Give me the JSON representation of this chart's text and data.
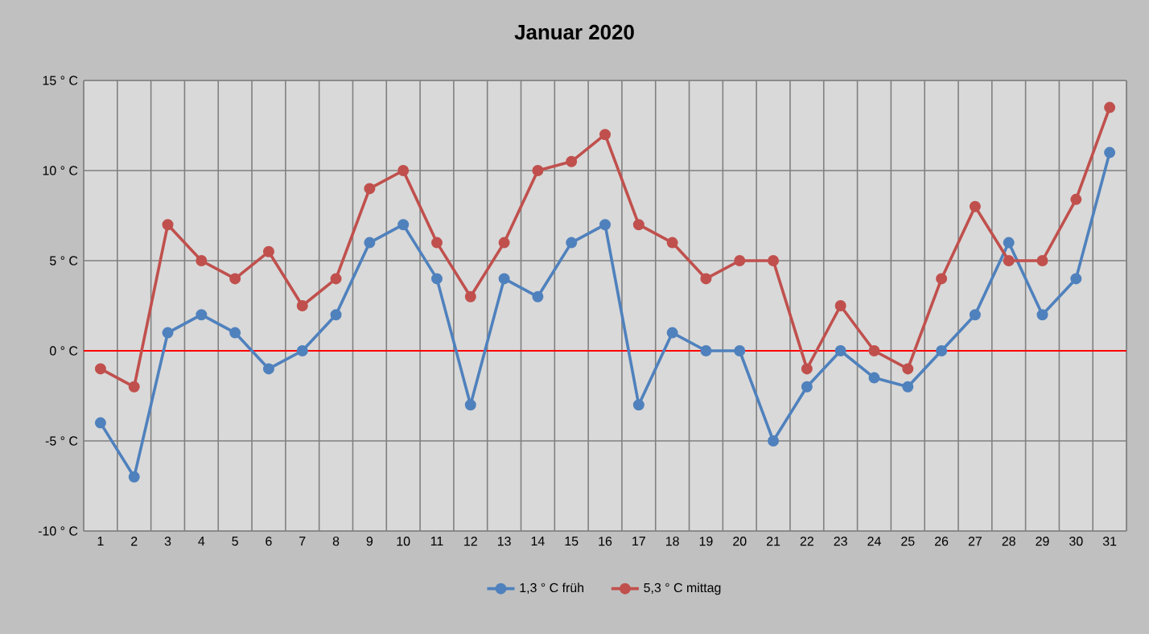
{
  "chart_data": {
    "type": "line",
    "title": "Januar 2020",
    "categories": [
      "1",
      "2",
      "3",
      "4",
      "5",
      "6",
      "7",
      "8",
      "9",
      "10",
      "11",
      "12",
      "13",
      "14",
      "15",
      "16",
      "17",
      "18",
      "19",
      "20",
      "21",
      "22",
      "23",
      "24",
      "25",
      "26",
      "27",
      "28",
      "29",
      "30",
      "31"
    ],
    "series": [
      {
        "name": "1,3 ° C früh",
        "color": "#4f81bd",
        "values": [
          -4,
          -7,
          1,
          2,
          1,
          -1,
          0,
          2,
          6,
          7,
          4,
          -3,
          4,
          3,
          6,
          7,
          -3,
          1,
          0,
          0,
          -5,
          -2,
          0,
          -1.5,
          -2,
          0,
          2,
          6,
          2,
          4,
          11
        ]
      },
      {
        "name": "5,3 ° C mittag",
        "color": "#c0504d",
        "values": [
          -1,
          -2,
          7,
          5,
          4,
          5.5,
          2.5,
          4,
          9,
          10,
          6,
          3,
          6,
          10,
          10.5,
          12,
          7,
          6,
          4,
          5,
          5,
          -1,
          2.5,
          0,
          -1,
          4,
          8,
          5,
          5,
          8.4,
          13.5
        ]
      }
    ],
    "ylim": [
      -10,
      15
    ],
    "yticks": [
      {
        "value": -10,
        "label": "-10 ° C"
      },
      {
        "value": -5,
        "label": "-5 ° C"
      },
      {
        "value": 0,
        "label": "0 ° C"
      },
      {
        "value": 5,
        "label": "5 ° C"
      },
      {
        "value": 10,
        "label": "10 ° C"
      },
      {
        "value": 15,
        "label": "15 ° C"
      }
    ],
    "ref_lines": [
      {
        "axis": "y",
        "value": 0,
        "color": "#ff0000"
      }
    ],
    "grid": true,
    "legend": "bottom",
    "marker": "circle",
    "line_style": "solid"
  }
}
